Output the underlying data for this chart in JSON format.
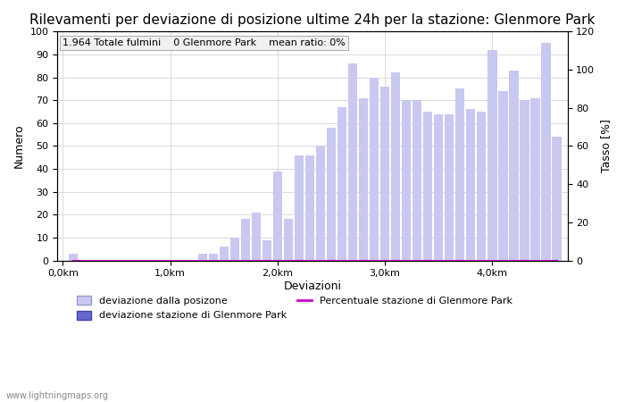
{
  "title": "Rilevamenti per deviazione di posizione ultime 24h per la stazione: Glenmore Park",
  "subtitle": "1.964 Totale fulmini    0 Glenmore Park    mean ratio: 0%",
  "xlabel": "Deviazioni",
  "ylabel_left": "Numero",
  "ylabel_right": "Tasso [%]",
  "watermark": "www.lightningmaps.org",
  "ylim_left": [
    0,
    100
  ],
  "ylim_right": [
    0,
    120
  ],
  "bar_positions": [
    0.1,
    0.2,
    0.3,
    0.4,
    0.5,
    0.6,
    0.7,
    0.8,
    0.9,
    1.0,
    1.1,
    1.2,
    1.3,
    1.4,
    1.5,
    1.6,
    1.7,
    1.8,
    1.9,
    2.0,
    2.1,
    2.2,
    2.3,
    2.4,
    2.5,
    2.6,
    2.7,
    2.8,
    2.9,
    3.0,
    3.1,
    3.2,
    3.3,
    3.4,
    3.5,
    3.6,
    3.7,
    3.8,
    3.9,
    4.0,
    4.1,
    4.2,
    4.3,
    4.4,
    4.5,
    4.6
  ],
  "bar_values": [
    3,
    0,
    0,
    0,
    0,
    0,
    0,
    0,
    0,
    0,
    0,
    0,
    3,
    3,
    6,
    10,
    18,
    21,
    9,
    39,
    18,
    46,
    46,
    50,
    58,
    67,
    86,
    71,
    80,
    76,
    82,
    70,
    70,
    65,
    64,
    64,
    75,
    66,
    65,
    92,
    74,
    83,
    70,
    71,
    95,
    54
  ],
  "station_bar_values": [
    0,
    0,
    0,
    0,
    0,
    0,
    0,
    0,
    0,
    0,
    0,
    0,
    0,
    0,
    0,
    0,
    0,
    0,
    0,
    0,
    0,
    0,
    0,
    0,
    0,
    0,
    0,
    0,
    0,
    0,
    0,
    0,
    0,
    0,
    0,
    0,
    0,
    0,
    0,
    0,
    0,
    0,
    0,
    0,
    0,
    0
  ],
  "percentage_values": [
    0,
    0,
    0,
    0,
    0,
    0,
    0,
    0,
    0,
    0,
    0,
    0,
    0,
    0,
    0,
    0,
    0,
    0,
    0,
    0,
    0,
    0,
    0,
    0,
    0,
    0,
    0,
    0,
    0,
    0,
    0,
    0,
    0,
    0,
    0,
    0,
    0,
    0,
    0,
    0,
    0,
    0,
    0,
    0,
    0,
    0
  ],
  "xtick_positions": [
    0.0,
    1.0,
    2.0,
    3.0,
    4.0
  ],
  "xtick_labels": [
    "0,0km",
    "1,0km",
    "2,0km",
    "3,0km",
    "4,0km"
  ],
  "ytick_left": [
    0,
    10,
    20,
    30,
    40,
    50,
    60,
    70,
    80,
    90,
    100
  ],
  "ytick_right": [
    0,
    20,
    40,
    60,
    80,
    100,
    120
  ],
  "bar_color_light": "#c8c8f0",
  "bar_color_station": "#6666cc",
  "line_color": "#cc00cc",
  "grid_color": "#cccccc",
  "background_color": "#ffffff",
  "text_color": "#000000",
  "subtitle_box_color": "#f0f0f0",
  "title_fontsize": 11,
  "subtitle_fontsize": 8,
  "axis_fontsize": 9,
  "tick_fontsize": 8,
  "legend_fontsize": 8,
  "bar_width": 0.085
}
